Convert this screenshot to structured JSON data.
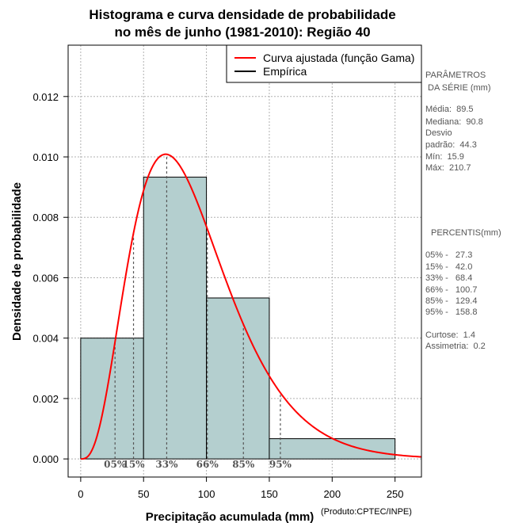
{
  "chart_data": {
    "type": "bar",
    "title_lines": [
      "Histograma e curva densidade de probabilidade",
      "no mês de junho (1981-2010): Região 40"
    ],
    "xlabel": "Precipitação acumulada (mm)",
    "ylabel": "Densidade de probabilidade",
    "xlim": [
      -10,
      271
    ],
    "ylim": [
      -0.0006,
      0.0137
    ],
    "x_ticks": [
      0,
      50,
      100,
      150,
      200,
      250
    ],
    "y_ticks": [
      0.0,
      0.002,
      0.004,
      0.006,
      0.008,
      0.01,
      0.012
    ],
    "y_tick_labels": [
      "0.000",
      "0.002",
      "0.004",
      "0.006",
      "0.008",
      "0.010",
      "0.012"
    ],
    "grid": true,
    "bins": [
      {
        "from": 0,
        "to": 50,
        "density": 0.004
      },
      {
        "from": 50,
        "to": 100,
        "density": 0.00933
      },
      {
        "from": 100,
        "to": 150,
        "density": 0.00533
      },
      {
        "from": 150,
        "to": 250,
        "density": 0.00067
      }
    ],
    "bar_color": "#b4cfcf",
    "gamma_fit": {
      "mean": 89.5,
      "sd": 44.3,
      "color": "#ff0000"
    },
    "percentile_markers": [
      {
        "x": 27.3,
        "label": "05%"
      },
      {
        "x": 42.0,
        "label": "15%"
      },
      {
        "x": 68.4,
        "label": "33%"
      },
      {
        "x": 100.7,
        "label": "66%"
      },
      {
        "x": 129.4,
        "label": "85%"
      },
      {
        "x": 158.8,
        "label": "95%"
      }
    ],
    "legend": {
      "position": "top-right",
      "entries": [
        {
          "label": "Curva ajustada (função Gama)",
          "color": "#ff0000"
        },
        {
          "label": "Empírica",
          "color": "#000000"
        }
      ]
    }
  },
  "side_panel": {
    "params_title_1": "PARÂMETROS",
    "params_title_2": " DA SÉRIE (mm)",
    "media": "Média:  89.5",
    "mediana": "Mediana:  90.8",
    "desvio_1": "Desvio",
    "desvio_2": "padrão:  44.3",
    "min": "Mín:  15.9",
    "max": "Máx:  210.7",
    "percentis_title": "PERCENTIS(mm)",
    "p05": "05% -   27.3",
    "p15": "15% -   42.0",
    "p33": "33% -   68.4",
    "p66": "66% -   100.7",
    "p85": "85% -   129.4",
    "p95": "95% -   158.8",
    "curtose": "Curtose:  1.4",
    "assimetria": "Assimetria:  0.2"
  },
  "credit": "(Produto:CPTEC/INPE)"
}
